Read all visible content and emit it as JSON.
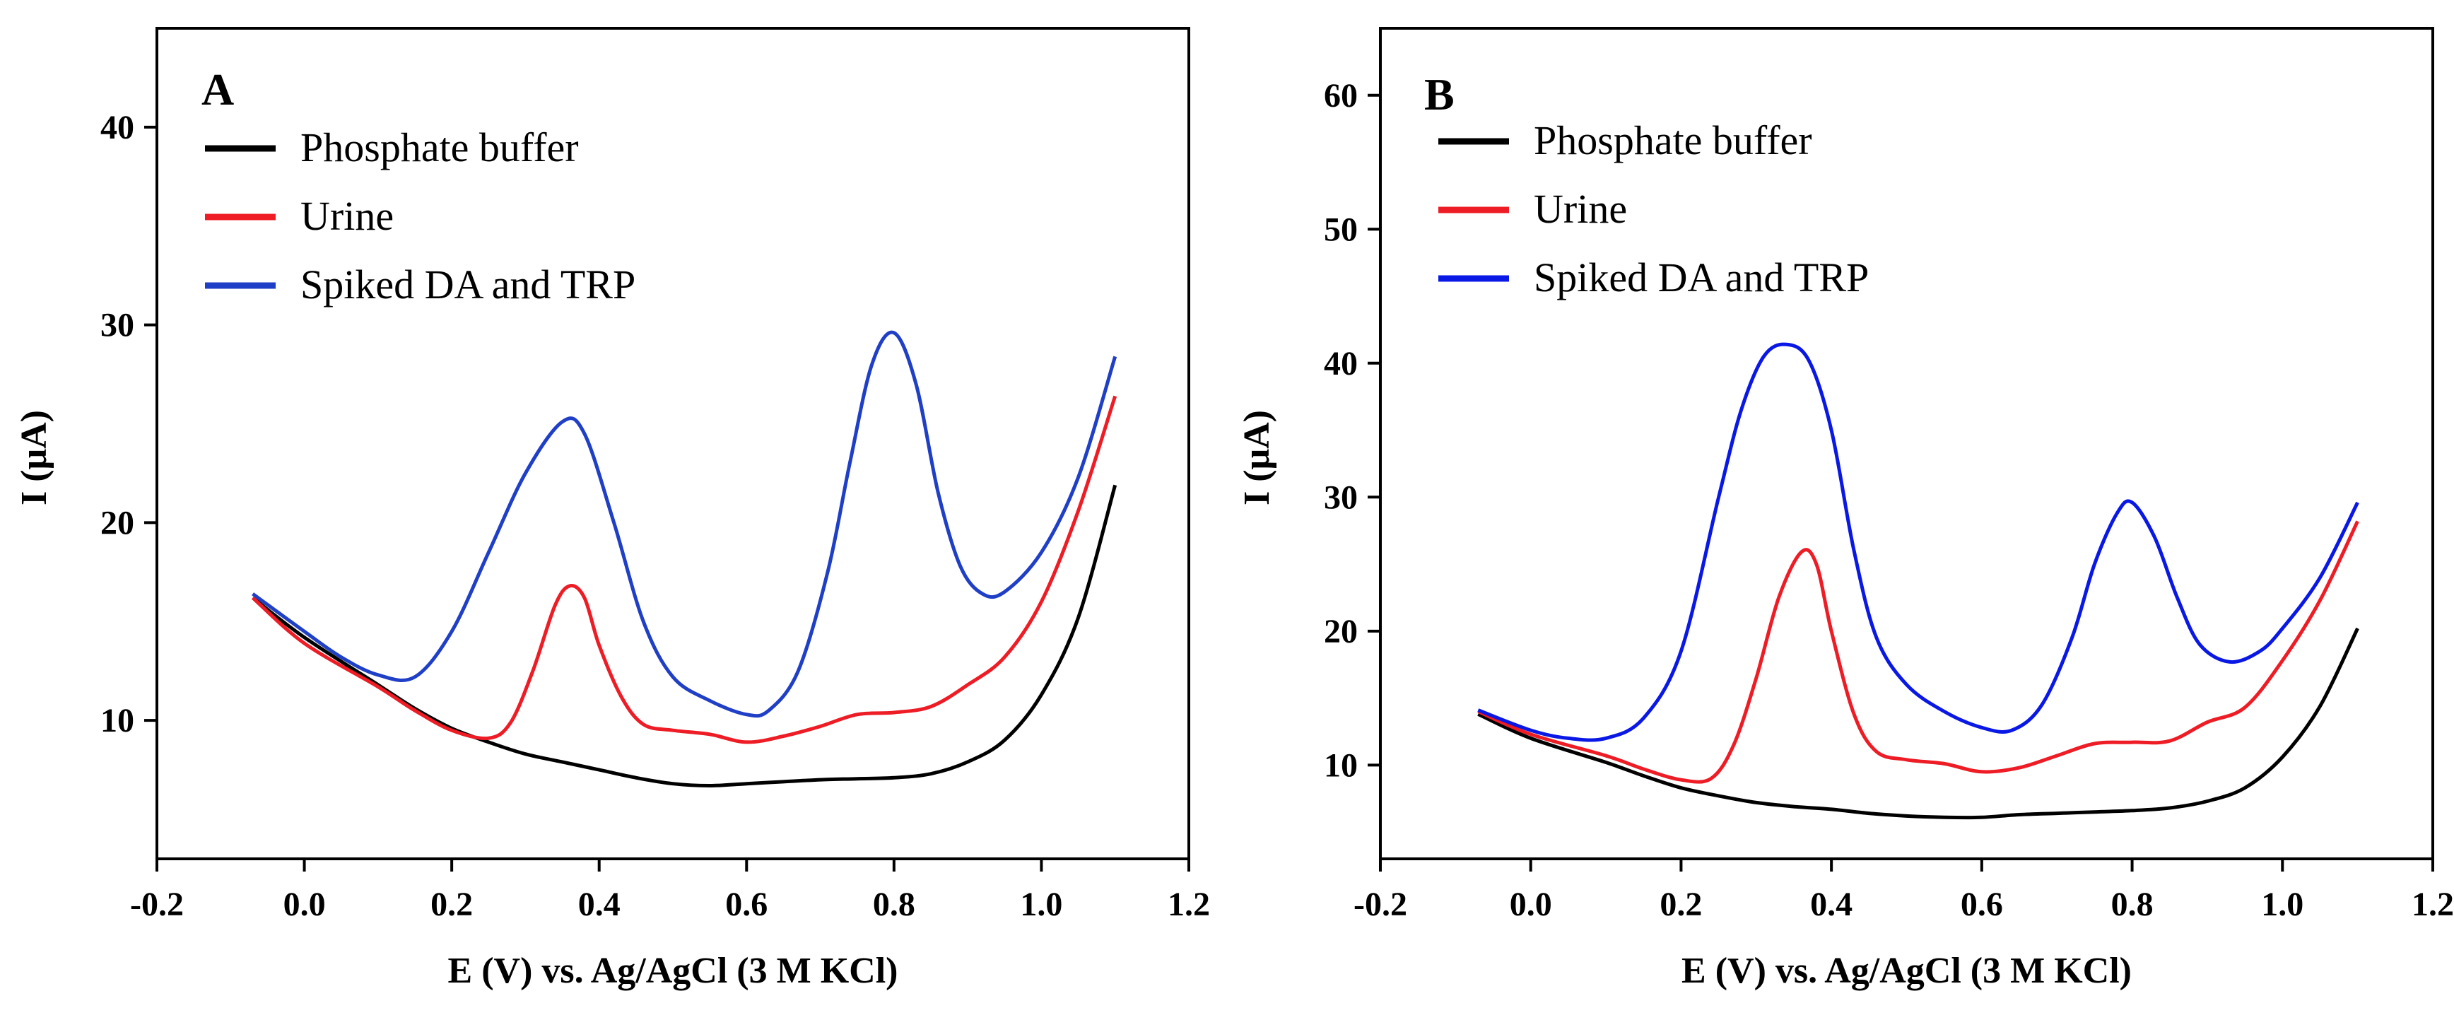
{
  "chart_data": [
    {
      "type": "line",
      "panel_label": "A",
      "xlabel": "E (V) vs. Ag/AgCl (3 M KCl)",
      "ylabel": "I (μA)",
      "xlim": [
        -0.2,
        1.2
      ],
      "ylim": [
        3,
        45
      ],
      "xticks": [
        -0.2,
        0.0,
        0.2,
        0.4,
        0.6,
        0.8,
        1.0,
        1.2
      ],
      "xtick_labels": [
        "-0.2",
        "0.0",
        "0.2",
        "0.4",
        "0.6",
        "0.8",
        "1.0",
        "1.2"
      ],
      "yticks": [
        10,
        20,
        30,
        40
      ],
      "ytick_labels": [
        "10",
        "20",
        "30",
        "40"
      ],
      "legend": "top-left",
      "series": [
        {
          "name": "Phosphate buffer",
          "color": "#000000",
          "x": [
            -0.07,
            0.0,
            0.1,
            0.15,
            0.2,
            0.25,
            0.3,
            0.35,
            0.4,
            0.45,
            0.5,
            0.55,
            0.6,
            0.65,
            0.7,
            0.75,
            0.8,
            0.85,
            0.9,
            0.95,
            1.0,
            1.05,
            1.1
          ],
          "y": [
            16.2,
            14.2,
            11.8,
            10.6,
            9.6,
            8.9,
            8.3,
            7.9,
            7.5,
            7.1,
            6.8,
            6.7,
            6.8,
            6.9,
            7.0,
            7.05,
            7.1,
            7.3,
            7.9,
            9.0,
            11.3,
            15.2,
            21.9
          ]
        },
        {
          "name": "Urine",
          "color": "#ee1c25",
          "x": [
            -0.07,
            0.0,
            0.1,
            0.15,
            0.2,
            0.25,
            0.28,
            0.31,
            0.34,
            0.36,
            0.38,
            0.4,
            0.43,
            0.46,
            0.5,
            0.55,
            0.6,
            0.65,
            0.7,
            0.75,
            0.8,
            0.85,
            0.9,
            0.95,
            1.0,
            1.05,
            1.1
          ],
          "y": [
            16.2,
            13.9,
            11.7,
            10.5,
            9.5,
            9.1,
            9.9,
            12.5,
            15.8,
            16.8,
            16.2,
            13.8,
            11.2,
            9.8,
            9.5,
            9.3,
            8.9,
            9.2,
            9.7,
            10.3,
            10.4,
            10.7,
            11.8,
            13.2,
            16.0,
            20.6,
            26.4
          ]
        },
        {
          "name": "Spiked DA and TRP",
          "color": "#1f3fc6",
          "x": [
            -0.07,
            0.0,
            0.05,
            0.1,
            0.15,
            0.2,
            0.25,
            0.3,
            0.35,
            0.38,
            0.42,
            0.46,
            0.5,
            0.55,
            0.6,
            0.63,
            0.67,
            0.71,
            0.74,
            0.77,
            0.8,
            0.83,
            0.86,
            0.89,
            0.92,
            0.95,
            1.0,
            1.05,
            1.1
          ],
          "y": [
            16.4,
            14.5,
            13.2,
            12.3,
            12.2,
            14.5,
            18.5,
            22.5,
            25.1,
            24.5,
            20.0,
            15.0,
            12.2,
            11.0,
            10.3,
            10.5,
            12.5,
            17.5,
            23.0,
            28.0,
            29.6,
            27.0,
            21.5,
            17.8,
            16.4,
            16.5,
            18.5,
            22.3,
            28.4
          ]
        }
      ]
    },
    {
      "type": "line",
      "panel_label": "B",
      "xlabel": "E (V) vs. Ag/AgCl (3 M KCl)",
      "ylabel": "I (μA)",
      "xlim": [
        -0.2,
        1.2
      ],
      "ylim": [
        3,
        65
      ],
      "xticks": [
        -0.2,
        0.0,
        0.2,
        0.4,
        0.6,
        0.8,
        1.0,
        1.2
      ],
      "xtick_labels": [
        "-0.2",
        "0.0",
        "0.2",
        "0.4",
        "0.6",
        "0.8",
        "1.0",
        "1.2"
      ],
      "yticks": [
        10,
        20,
        30,
        40,
        50,
        60
      ],
      "ytick_labels": [
        "10",
        "20",
        "30",
        "40",
        "50",
        "60"
      ],
      "legend": "top-left",
      "series": [
        {
          "name": "Phosphate buffer",
          "color": "#000000",
          "x": [
            -0.07,
            0.0,
            0.1,
            0.15,
            0.2,
            0.25,
            0.3,
            0.35,
            0.4,
            0.45,
            0.5,
            0.55,
            0.6,
            0.65,
            0.7,
            0.75,
            0.8,
            0.85,
            0.9,
            0.95,
            1.0,
            1.05,
            1.1
          ],
          "y": [
            13.8,
            12.0,
            10.2,
            9.2,
            8.3,
            7.7,
            7.2,
            6.9,
            6.7,
            6.4,
            6.2,
            6.1,
            6.1,
            6.3,
            6.4,
            6.5,
            6.6,
            6.8,
            7.3,
            8.3,
            10.6,
            14.4,
            20.2
          ]
        },
        {
          "name": "Urine",
          "color": "#ee1c25",
          "x": [
            -0.07,
            0.0,
            0.1,
            0.15,
            0.2,
            0.24,
            0.27,
            0.3,
            0.33,
            0.36,
            0.38,
            0.4,
            0.43,
            0.46,
            0.5,
            0.55,
            0.6,
            0.65,
            0.7,
            0.75,
            0.8,
            0.85,
            0.9,
            0.95,
            1.0,
            1.05,
            1.1
          ],
          "y": [
            14.0,
            12.3,
            10.7,
            9.7,
            8.9,
            9.0,
            11.5,
            16.5,
            22.5,
            25.9,
            25.0,
            20.0,
            13.8,
            11.0,
            10.4,
            10.1,
            9.5,
            9.8,
            10.7,
            11.6,
            11.7,
            11.8,
            13.2,
            14.3,
            17.8,
            22.3,
            28.2
          ]
        },
        {
          "name": "Spiked DA and TRP",
          "color": "#0a18e6",
          "x": [
            -0.07,
            0.0,
            0.05,
            0.1,
            0.15,
            0.2,
            0.25,
            0.28,
            0.31,
            0.34,
            0.37,
            0.4,
            0.43,
            0.46,
            0.5,
            0.55,
            0.6,
            0.64,
            0.68,
            0.72,
            0.75,
            0.78,
            0.8,
            0.83,
            0.86,
            0.89,
            0.93,
            0.97,
            1.0,
            1.05,
            1.1
          ],
          "y": [
            14.1,
            12.6,
            12.0,
            12.0,
            13.5,
            18.5,
            30.0,
            36.5,
            40.5,
            41.4,
            40.2,
            35.0,
            26.0,
            19.5,
            16.0,
            14.0,
            12.8,
            12.6,
            14.5,
            19.5,
            25.0,
            28.8,
            29.6,
            27.0,
            22.5,
            19.0,
            17.7,
            18.5,
            20.2,
            24.0,
            29.6
          ]
        }
      ]
    }
  ]
}
